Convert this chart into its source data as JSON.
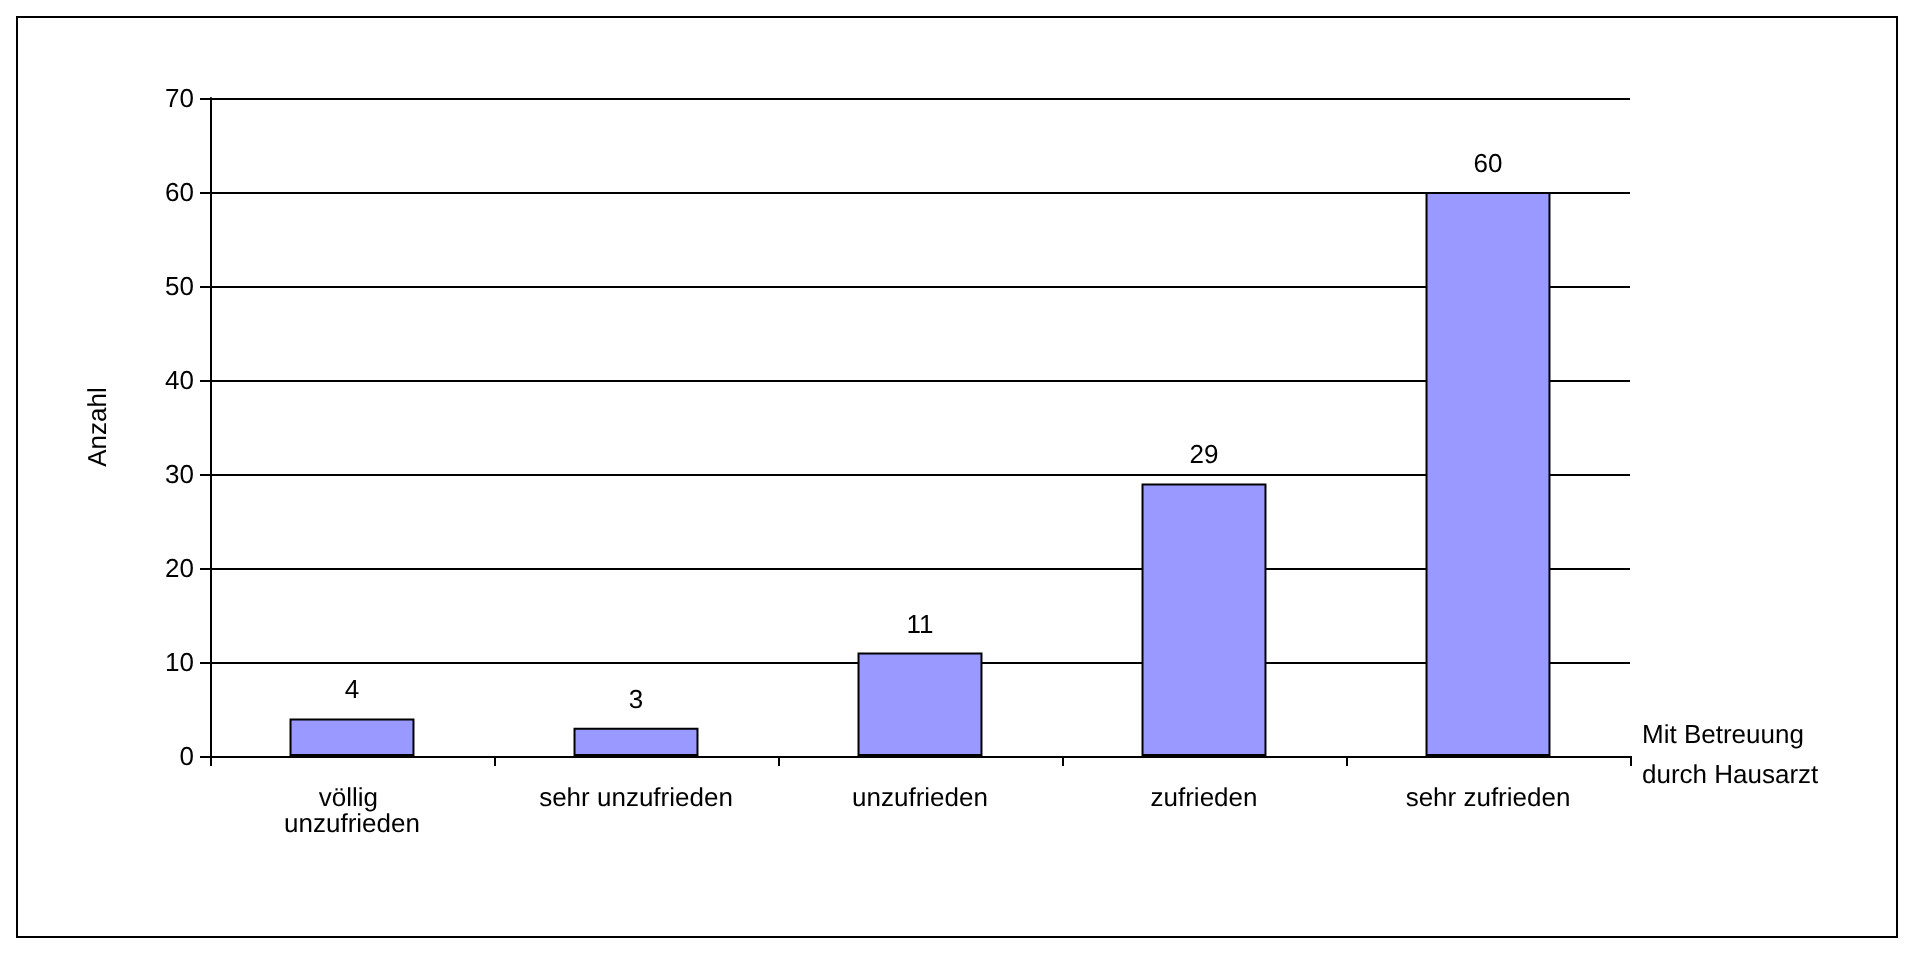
{
  "chart_data": {
    "type": "bar",
    "ylabel": "Anzahl",
    "xlabel": "Mit Betreuung durch Hausarzt",
    "categories": [
      "völlig unzufrieden",
      "sehr unzufrieden",
      "unzufrieden",
      "zufrieden",
      "sehr zufrieden"
    ],
    "values": [
      4,
      3,
      11,
      29,
      60
    ],
    "color": "#9999ff",
    "ylim": [
      0,
      70
    ],
    "yticks": [
      0,
      10,
      20,
      30,
      40,
      50,
      60,
      70
    ],
    "grid": "y",
    "data_labels": true
  }
}
